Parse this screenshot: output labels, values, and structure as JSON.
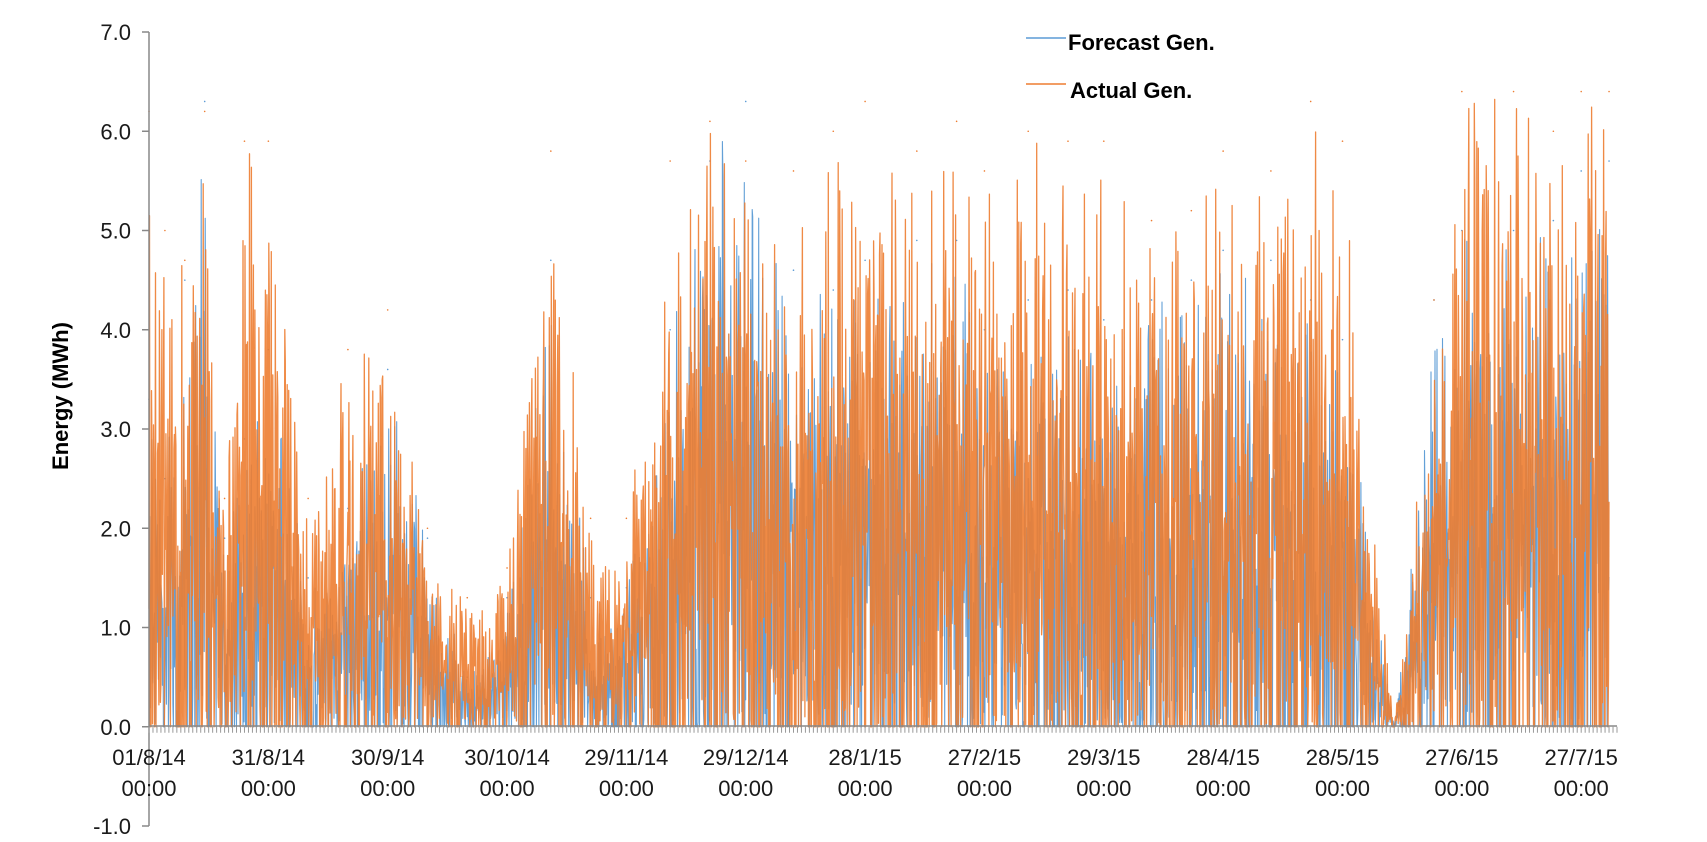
{
  "chart_data": {
    "type": "line",
    "title": "",
    "xlabel": "",
    "ylabel": "Energy (MWh)",
    "ylim": [
      -1.0,
      7.0
    ],
    "xlim": [
      "2014-08-01 00:00",
      "2015-08-05 00:00"
    ],
    "y_ticks": [
      "7.0",
      "6.0",
      "5.0",
      "4.0",
      "3.0",
      "2.0",
      "1.0",
      "0.0",
      "-1.0"
    ],
    "y_tick_values": [
      7,
      6,
      5,
      4,
      3,
      2,
      1,
      0,
      -1
    ],
    "x_ticks": [
      {
        "date": "01/8/14",
        "time": "00:00",
        "value": "2014-08-01 00:00"
      },
      {
        "date": "31/8/14",
        "time": "00:00",
        "value": "2014-08-31 00:00"
      },
      {
        "date": "30/9/14",
        "time": "00:00",
        "value": "2014-09-30 00:00"
      },
      {
        "date": "30/10/14",
        "time": "00:00",
        "value": "2014-10-30 00:00"
      },
      {
        "date": "29/11/14",
        "time": "00:00",
        "value": "2014-11-29 00:00"
      },
      {
        "date": "29/12/14",
        "time": "00:00",
        "value": "2014-12-29 00:00"
      },
      {
        "date": "28/1/15",
        "time": "00:00",
        "value": "2015-01-28 00:00"
      },
      {
        "date": "27/2/15",
        "time": "00:00",
        "value": "2015-02-27 00:00"
      },
      {
        "date": "29/3/15",
        "time": "00:00",
        "value": "2015-03-29 00:00"
      },
      {
        "date": "28/4/15",
        "time": "00:00",
        "value": "2015-04-28 00:00"
      },
      {
        "date": "28/5/15",
        "time": "00:00",
        "value": "2015-05-28 00:00"
      },
      {
        "date": "27/6/15",
        "time": "00:00",
        "value": "2015-06-27 00:00"
      },
      {
        "date": "27/7/15",
        "time": "00:00",
        "value": "2015-07-27 00:00"
      }
    ],
    "grid": false,
    "legend_position": "top-right",
    "series": [
      {
        "name": "Forecast Gen.",
        "color": "#5b9bd5",
        "x": [
          "2014-08-01",
          "2014-08-05",
          "2014-08-10",
          "2014-08-15",
          "2014-08-20",
          "2014-08-25",
          "2014-08-31",
          "2014-09-10",
          "2014-09-20",
          "2014-09-30",
          "2014-10-10",
          "2014-10-20",
          "2014-10-30",
          "2014-11-10",
          "2014-11-20",
          "2014-11-29",
          "2014-12-10",
          "2014-12-20",
          "2014-12-29",
          "2015-01-10",
          "2015-01-20",
          "2015-01-28",
          "2015-02-10",
          "2015-02-20",
          "2015-02-27",
          "2015-03-10",
          "2015-03-20",
          "2015-03-29",
          "2015-04-10",
          "2015-04-20",
          "2015-04-28",
          "2015-05-10",
          "2015-05-20",
          "2015-05-28",
          "2015-06-10",
          "2015-06-20",
          "2015-06-27",
          "2015-07-10",
          "2015-07-20",
          "2015-07-27",
          "2015-08-03"
        ],
        "values": [
          3.3,
          2.5,
          4.5,
          6.3,
          1.9,
          2.9,
          3.8,
          1.5,
          2.2,
          3.6,
          1.9,
          0.5,
          1.3,
          4.7,
          1.3,
          1.4,
          4.0,
          5.7,
          6.3,
          4.6,
          4.4,
          4.7,
          4.9,
          4.9,
          4.0,
          4.3,
          4.4,
          4.1,
          4.3,
          4.5,
          4.8,
          4.7,
          4.3,
          3.9,
          0.0,
          4.3,
          5.0,
          5.0,
          5.1,
          5.6,
          5.7
        ]
      },
      {
        "name": "Actual Gen.",
        "color": "#ed7d31",
        "x": [
          "2014-08-01",
          "2014-08-05",
          "2014-08-10",
          "2014-08-15",
          "2014-08-20",
          "2014-08-25",
          "2014-08-31",
          "2014-09-10",
          "2014-09-20",
          "2014-09-30",
          "2014-10-10",
          "2014-10-20",
          "2014-10-30",
          "2014-11-10",
          "2014-11-20",
          "2014-11-29",
          "2014-12-10",
          "2014-12-20",
          "2014-12-29",
          "2015-01-10",
          "2015-01-20",
          "2015-01-28",
          "2015-02-10",
          "2015-02-20",
          "2015-02-27",
          "2015-03-10",
          "2015-03-20",
          "2015-03-29",
          "2015-04-10",
          "2015-04-20",
          "2015-04-28",
          "2015-05-10",
          "2015-05-20",
          "2015-05-28",
          "2015-06-10",
          "2015-06-20",
          "2015-06-27",
          "2015-07-10",
          "2015-07-20",
          "2015-07-27",
          "2015-08-03"
        ],
        "values": [
          6.2,
          5.0,
          4.7,
          6.2,
          2.3,
          5.9,
          5.9,
          2.3,
          3.8,
          4.2,
          2.0,
          1.3,
          1.6,
          5.8,
          2.1,
          2.1,
          5.7,
          6.1,
          5.7,
          5.6,
          6.0,
          6.3,
          5.8,
          6.1,
          5.6,
          6.0,
          5.9,
          5.9,
          5.1,
          5.2,
          5.8,
          5.6,
          6.3,
          5.9,
          0.0,
          4.3,
          6.4,
          6.4,
          6.0,
          6.4,
          6.4
        ]
      }
    ]
  }
}
